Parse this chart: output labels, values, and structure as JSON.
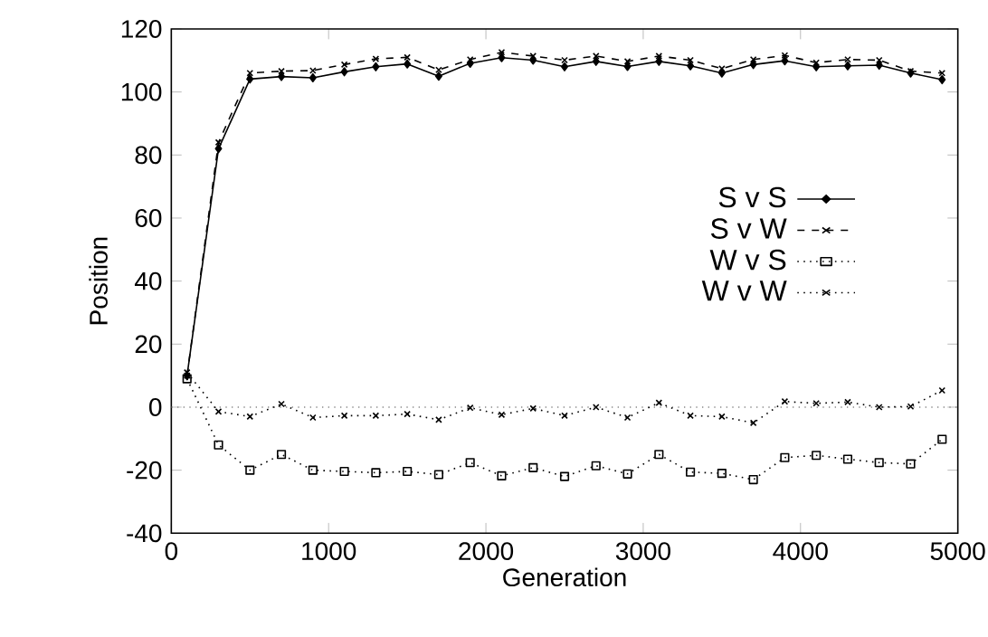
{
  "chart_data": {
    "type": "line",
    "xlabel": "Generation",
    "ylabel": "Position",
    "x": [
      100,
      300,
      500,
      700,
      900,
      1100,
      1300,
      1500,
      1700,
      1900,
      2100,
      2300,
      2500,
      2700,
      2900,
      3100,
      3300,
      3500,
      3700,
      3900,
      4100,
      4300,
      4500,
      4700,
      4900
    ],
    "series": [
      {
        "name": "S v S",
        "color": "#000000",
        "marker": "diamond",
        "line_style": "solid",
        "values": [
          10,
          82,
          104.1,
          104.9,
          104.5,
          106.4,
          108,
          108.9,
          105,
          109.1,
          110.9,
          110.1,
          108,
          109.7,
          108.1,
          109.7,
          108.3,
          106,
          108.7,
          109.9,
          108,
          108.3,
          108.5,
          106,
          103.9
        ]
      },
      {
        "name": "S v W",
        "color": "#000000",
        "marker": "cross",
        "line_style": "dashed",
        "values": [
          10,
          84,
          106,
          106.6,
          106.8,
          108.7,
          110.5,
          111,
          107,
          110.3,
          112.6,
          111.4,
          110.1,
          111.4,
          109.7,
          111.4,
          110.1,
          107.4,
          110.3,
          111.6,
          109.3,
          110.3,
          110.1,
          106.6,
          106
        ]
      },
      {
        "name": "W v S",
        "color": "#000000",
        "marker": "square",
        "line_style": "dotted",
        "values": [
          9,
          -12,
          -20,
          -15,
          -20,
          -20.4,
          -20.8,
          -20.4,
          -21.4,
          -17.6,
          -21.8,
          -19.2,
          -22,
          -18.6,
          -21.2,
          -15,
          -20.6,
          -21,
          -23,
          -16,
          -15.3,
          -16.5,
          -17.6,
          -18,
          -10.2
        ]
      },
      {
        "name": "W v W",
        "color": "#000000",
        "marker": "cross",
        "line_style": "dotted",
        "values": [
          11,
          -1.4,
          -3,
          1,
          -3.3,
          -2.7,
          -2.7,
          -2.2,
          -4,
          -0.2,
          -2.4,
          -0.4,
          -2.7,
          0,
          -3.3,
          1.4,
          -2.7,
          -3,
          -5,
          1.8,
          1.2,
          1.6,
          0,
          0.2,
          5.3
        ]
      }
    ],
    "ref_lines": [
      {
        "axis": "y",
        "value": 0,
        "color": "#888888",
        "line_style": "dotted"
      }
    ],
    "xlim": [
      0,
      5000
    ],
    "xticks": [
      0,
      1000,
      2000,
      3000,
      4000,
      5000
    ],
    "ylim": [
      -40,
      120
    ],
    "yticks": [
      -40,
      -20,
      0,
      20,
      40,
      60,
      80,
      100,
      120
    ],
    "grid": false,
    "legend": "right"
  }
}
